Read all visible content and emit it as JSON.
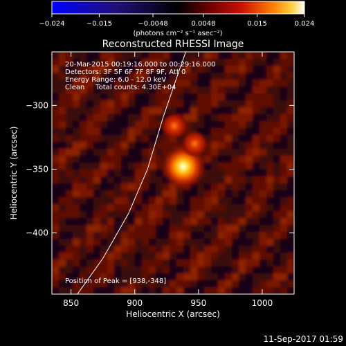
{
  "chart_data": {
    "type": "heatmap",
    "title": "Reconstructed RHESSI Image",
    "xlabel": "Heliocentric X (arcsec)",
    "ylabel": "Heliocentric Y (arcsec)",
    "xlim": [
      835,
      1025
    ],
    "ylim": [
      -448,
      -258
    ],
    "x_ticks": [
      850,
      900,
      950,
      1000
    ],
    "y_ticks": [
      -300,
      -350,
      -400
    ],
    "x_tick_labels": [
      "850",
      "900",
      "950",
      "1000"
    ],
    "y_tick_labels": [
      "−300",
      "−350",
      "−400"
    ],
    "colorbar": {
      "range": [
        -0.024,
        0.024
      ],
      "ticks": [
        -0.024,
        -0.015,
        -0.0048,
        0.0048,
        0.015,
        0.024
      ],
      "tick_labels": [
        "−0.024",
        "−0.015",
        "−0.0048",
        "0.0048",
        "0.015",
        "0.024"
      ],
      "unit_label": "(photons cm⁻² s⁻¹ asec⁻²)",
      "colormap": [
        "#0000ff",
        "#1a0a6e",
        "#000000",
        "#5a0000",
        "#b00000",
        "#ff5000",
        "#ffb000",
        "#ffffff"
      ]
    },
    "sources": [
      {
        "x": 938,
        "y": -348,
        "relative_intensity": 1.0
      },
      {
        "x": 931,
        "y": -316,
        "relative_intensity": 0.55
      },
      {
        "x": 947,
        "y": -330,
        "relative_intensity": 0.4
      }
    ],
    "limb_curve": [
      {
        "x": 855,
        "y": -448
      },
      {
        "x": 875,
        "y": -420
      },
      {
        "x": 895,
        "y": -385
      },
      {
        "x": 910,
        "y": -350
      },
      {
        "x": 922,
        "y": -310
      },
      {
        "x": 934,
        "y": -275
      },
      {
        "x": 940,
        "y": -258
      }
    ],
    "info_lines": [
      "20-Mar-2015 00:19:16.000 to 00:29:16.000",
      "Detectors: 3F 5F 6F 7F 8F 9F, Att 0",
      "Energy Range: 6.0 - 12.0 keV",
      "Clean     Total counts: 4.30E+04"
    ],
    "peak_label": "Position of Peak = [938,-348]",
    "grid": false
  },
  "footer": {
    "timestamp": "11-Sep-2017 01:59"
  }
}
